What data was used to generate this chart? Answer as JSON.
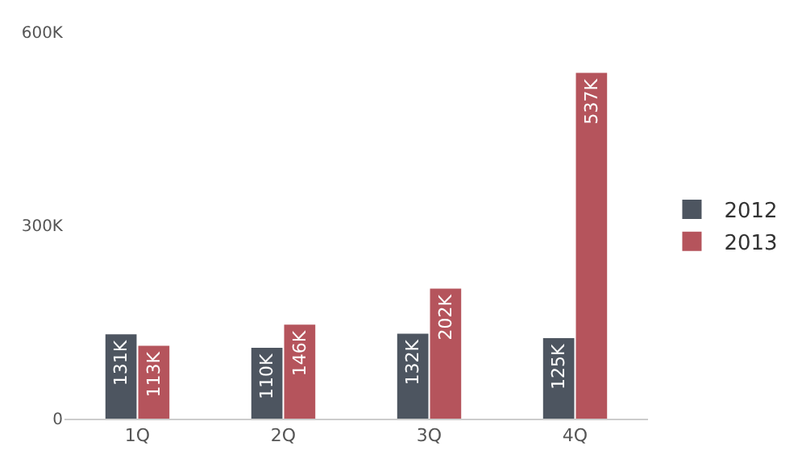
{
  "chart_data": {
    "type": "bar",
    "categories": [
      "1Q",
      "2Q",
      "3Q",
      "4Q"
    ],
    "series": [
      {
        "name": "2012",
        "color": "#4d5560",
        "values": [
          131000,
          110000,
          132000,
          125000
        ],
        "value_labels": [
          "131K",
          "110K",
          "132K",
          "125K"
        ]
      },
      {
        "name": "2013",
        "color": "#b5545c",
        "values": [
          113000,
          146000,
          202000,
          537000
        ],
        "value_labels": [
          "113K",
          "146K",
          "202K",
          "537K"
        ]
      }
    ],
    "ylim": [
      0,
      600000
    ],
    "yticks": [
      0,
      {
        "value": 300000,
        "label": "300K"
      },
      {
        "value": 600000,
        "label": "600K"
      }
    ],
    "grid": false,
    "legend": "right"
  }
}
